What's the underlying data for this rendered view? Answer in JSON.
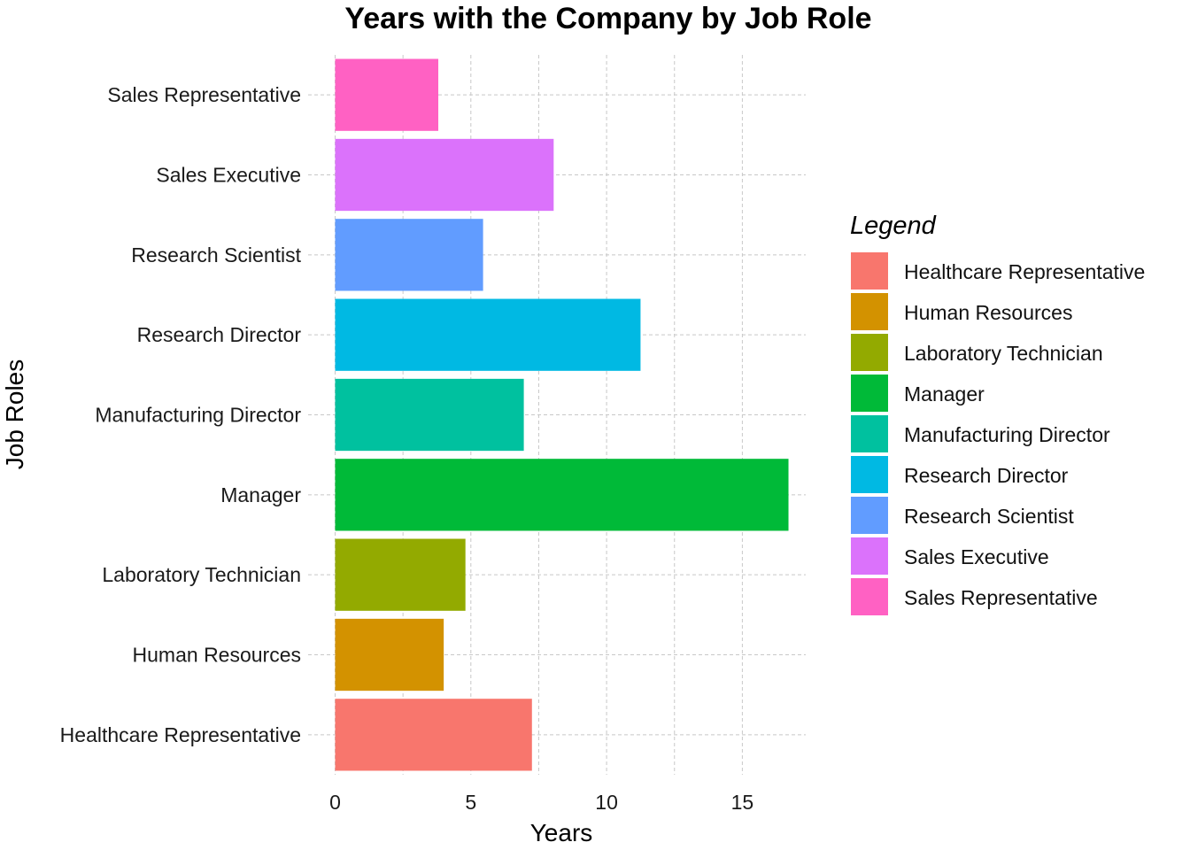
{
  "chart_data": {
    "type": "bar",
    "orientation": "horizontal",
    "title": "Years with the Company by Job Role",
    "xlabel": "Years",
    "ylabel": "Job Roles",
    "xlim": [
      0,
      17.2
    ],
    "xticks": [
      0,
      5,
      10,
      15
    ],
    "grid": true,
    "legend": {
      "title": "Legend",
      "position": "right"
    },
    "categories": [
      "Healthcare Representative",
      "Human Resources",
      "Laboratory Technician",
      "Manager",
      "Manufacturing Director",
      "Research Director",
      "Research Scientist",
      "Sales Executive",
      "Sales Representative"
    ],
    "values": [
      7.25,
      4.0,
      4.8,
      16.7,
      6.95,
      11.25,
      5.45,
      8.05,
      3.8
    ],
    "colors": [
      "#F8766D",
      "#D39200",
      "#93AA00",
      "#00BA38",
      "#00C19F",
      "#00B9E3",
      "#619CFF",
      "#DB72FB",
      "#FF61C3"
    ]
  }
}
